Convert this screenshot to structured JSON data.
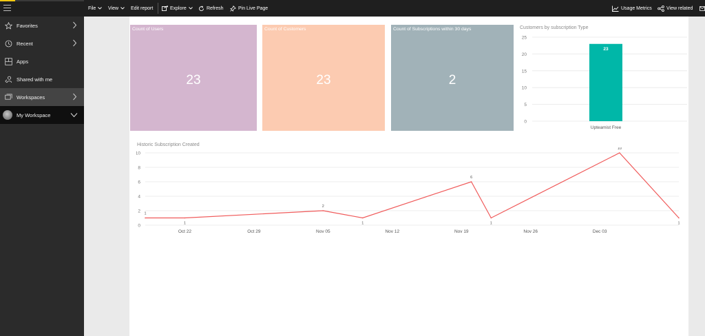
{
  "topbar": {
    "menu": [
      "File",
      "View",
      "Edit report",
      "Explore",
      "Refresh",
      "Pin Live Page"
    ],
    "right": [
      "Usage Metrics",
      "View related"
    ]
  },
  "sidebar": {
    "items": [
      {
        "label": "Favorites",
        "icon": "star-icon"
      },
      {
        "label": "Recent",
        "icon": "clock-icon"
      },
      {
        "label": "Apps",
        "icon": "apps-icon"
      },
      {
        "label": "Shared with me",
        "icon": "shared-icon"
      },
      {
        "label": "Workspaces",
        "icon": "workspaces-icon"
      },
      {
        "label": "My Workspace",
        "icon": "avatar"
      }
    ]
  },
  "cards": [
    {
      "title": "Count of Users",
      "value": "23",
      "color": "#d4b6cf"
    },
    {
      "title": "Count of Customers",
      "value": "23",
      "color": "#fccbb1"
    },
    {
      "title": "Count of Subscriptions within 30 days",
      "value": "2",
      "color": "#a1b2b8"
    }
  ],
  "colors": {
    "bar": "#00b7a8",
    "line": "#f05a5a",
    "topbar": "#1f1f1f",
    "sidebar": "#2b2b2b"
  },
  "chart_data": [
    {
      "type": "bar",
      "title": "Customers by subscription Type",
      "categories": [
        "Upteamist Free"
      ],
      "values": [
        23
      ],
      "ylim": [
        0,
        25
      ],
      "yticks": [
        0,
        5,
        10,
        15,
        20,
        25
      ],
      "data_labels": true,
      "grid": true
    },
    {
      "type": "line",
      "title": "Historic Subscription Created",
      "x": [
        "2017-10-18",
        "2017-10-22",
        "2017-11-05",
        "2017-11-09",
        "2017-11-20",
        "2017-11-22",
        "2017-12-05",
        "2017-12-11"
      ],
      "values": [
        1,
        1,
        2,
        1,
        6,
        1,
        10,
        1
      ],
      "xticks": [
        "Oct 22",
        "Oct 29",
        "Nov 05",
        "Nov 12",
        "Nov 19",
        "Nov 26",
        "Dec 03"
      ],
      "ylim": [
        0,
        10
      ],
      "yticks": [
        0,
        2,
        4,
        6,
        8,
        10
      ],
      "data_labels": true,
      "grid": true
    }
  ]
}
